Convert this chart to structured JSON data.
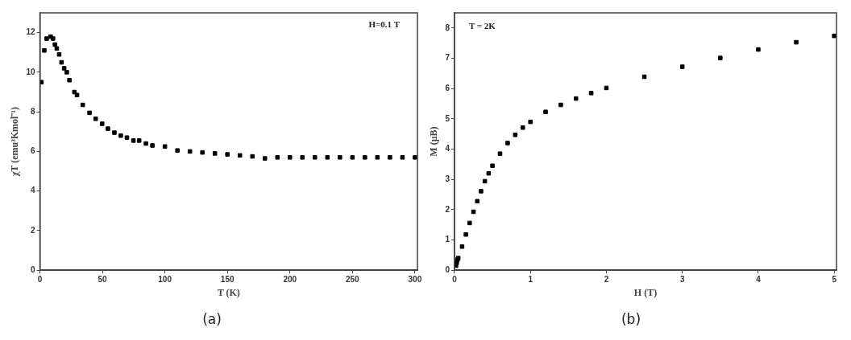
{
  "chart_data": [
    {
      "type": "scatter",
      "title": "(a)",
      "xlabel": "T (K)",
      "ylabel": "χT (emu³Kmol⁻¹)",
      "annotations": [
        "H=0.1 T"
      ],
      "marker": "square",
      "grid": false,
      "legend": false,
      "xlim": [
        0,
        302
      ],
      "ylim": [
        0,
        13
      ],
      "xticks": [
        0,
        50,
        100,
        150,
        200,
        250,
        300
      ],
      "yticks": [
        0,
        2,
        4,
        6,
        8,
        10,
        12
      ],
      "series": [
        {
          "color": "#000000",
          "x": [
            1.2,
            3.5,
            5.4,
            8.6,
            10.5,
            12,
            13.5,
            15.4,
            17.3,
            19.4,
            21.5,
            23.6,
            27.6,
            29.7,
            34.3,
            39.7,
            44.6,
            49.8,
            54.4,
            59.6,
            64.7,
            69.6,
            74.8,
            79.4,
            84.8,
            90,
            100,
            110,
            120,
            130,
            140,
            150,
            160,
            170,
            180,
            190,
            200,
            210,
            220,
            230,
            240,
            250,
            260,
            270,
            280,
            290,
            300
          ],
          "values": [
            9.5,
            11.1,
            11.7,
            11.8,
            11.7,
            11.4,
            11.2,
            10.9,
            10.5,
            10.2,
            10.0,
            9.6,
            9.0,
            8.85,
            8.35,
            7.95,
            7.65,
            7.4,
            7.15,
            6.95,
            6.8,
            6.7,
            6.55,
            6.55,
            6.4,
            6.3,
            6.25,
            6.05,
            6.0,
            5.95,
            5.9,
            5.85,
            5.8,
            5.75,
            5.65,
            5.7,
            5.7,
            5.7,
            5.7,
            5.7,
            5.7,
            5.7,
            5.7,
            5.7,
            5.7,
            5.7,
            5.7
          ]
        }
      ]
    },
    {
      "type": "scatter",
      "title": "(b)",
      "xlabel": "H (T)",
      "ylabel": "M (μB)",
      "annotations": [
        "T = 2K"
      ],
      "marker": "square",
      "grid": false,
      "legend": false,
      "xlim": [
        0,
        5.03
      ],
      "ylim": [
        0,
        8.5
      ],
      "xticks": [
        0,
        1,
        2,
        3,
        4,
        5
      ],
      "yticks": [
        0,
        1,
        2,
        3,
        4,
        5,
        6,
        7,
        8
      ],
      "series": [
        {
          "color": "#000000",
          "x": [
            0.02,
            0.03,
            0.04,
            0.05,
            0.1,
            0.15,
            0.2,
            0.25,
            0.3,
            0.35,
            0.4,
            0.45,
            0.5,
            0.6,
            0.7,
            0.8,
            0.9,
            1.0,
            1.2,
            1.4,
            1.6,
            1.8,
            2.0,
            2.5,
            3.0,
            3.5,
            4.0,
            4.5,
            5.0
          ],
          "values": [
            0.15,
            0.25,
            0.35,
            0.4,
            0.78,
            1.18,
            1.56,
            1.93,
            2.28,
            2.61,
            2.94,
            3.2,
            3.45,
            3.85,
            4.2,
            4.47,
            4.71,
            4.9,
            5.23,
            5.46,
            5.67,
            5.85,
            6.02,
            6.39,
            6.72,
            7.01,
            7.29,
            7.53,
            7.74
          ]
        }
      ]
    }
  ]
}
